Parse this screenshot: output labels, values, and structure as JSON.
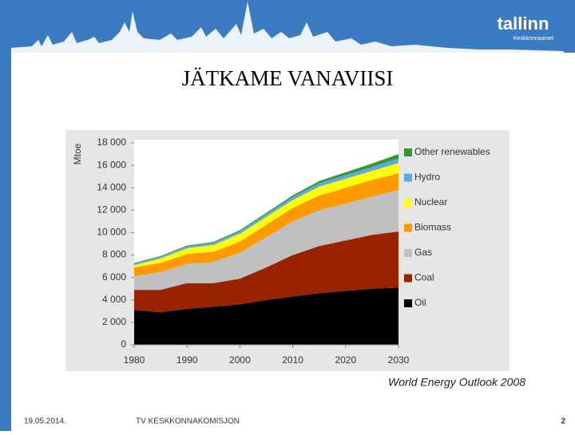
{
  "slide": {
    "title": "JÄTKAME VANAVIISI",
    "logo": "tallinn",
    "logo_subtitle": "Keskkonnaamet",
    "date": "19.05.2014.",
    "footer": "TV KESKKONNAKOMISJON",
    "page": "2"
  },
  "chart_data": {
    "type": "stacked_area",
    "ylabel": "Mtoe",
    "source": "World Energy Outlook 2008",
    "x": [
      1980,
      1985,
      1990,
      1995,
      2000,
      2005,
      2010,
      2015,
      2020,
      2025,
      2030
    ],
    "series": [
      {
        "name": "Oil",
        "color": "#000000",
        "values": [
          3100,
          2900,
          3200,
          3400,
          3600,
          4000,
          4300,
          4600,
          4800,
          5000,
          5100
        ]
      },
      {
        "name": "Coal",
        "color": "#992200",
        "values": [
          1800,
          2000,
          2300,
          2100,
          2300,
          2900,
          3700,
          4200,
          4500,
          4800,
          5000
        ]
      },
      {
        "name": "Gas",
        "color": "#c0c0c0",
        "values": [
          1200,
          1600,
          1700,
          1900,
          2300,
          2700,
          3000,
          3200,
          3300,
          3400,
          3700
        ]
      },
      {
        "name": "Biomass",
        "color": "#ff9900",
        "values": [
          800,
          800,
          900,
          900,
          1000,
          1100,
          1200,
          1300,
          1400,
          1500,
          1500
        ]
      },
      {
        "name": "Nuclear",
        "color": "#ffff00",
        "values": [
          200,
          400,
          500,
          600,
          700,
          700,
          700,
          800,
          800,
          800,
          900
        ]
      },
      {
        "name": "Hydro",
        "color": "#5fa8e0",
        "values": [
          150,
          170,
          180,
          200,
          220,
          250,
          270,
          300,
          330,
          360,
          400
        ]
      },
      {
        "name": "Other renewables",
        "color": "#339933",
        "values": [
          50,
          50,
          70,
          80,
          100,
          120,
          150,
          200,
          250,
          300,
          400
        ]
      }
    ],
    "xlim": [
      1980,
      2030
    ],
    "xticks": [
      1980,
      1990,
      2000,
      2010,
      2020,
      2030
    ],
    "ylim": [
      0,
      18000
    ],
    "yticks": [
      0,
      {
        "value": 2000,
        "label": "2 000"
      },
      {
        "value": 4000,
        "label": "4 000"
      },
      {
        "value": 6000,
        "label": "6 000"
      },
      {
        "value": 8000,
        "label": "8 000"
      },
      {
        "value": 10000,
        "label": "10 000"
      },
      {
        "value": 12000,
        "label": "12 000"
      },
      {
        "value": 14000,
        "label": "14 000"
      },
      {
        "value": 16000,
        "label": "16 000"
      },
      {
        "value": 18000,
        "label": "18 000"
      }
    ],
    "grid": false
  }
}
